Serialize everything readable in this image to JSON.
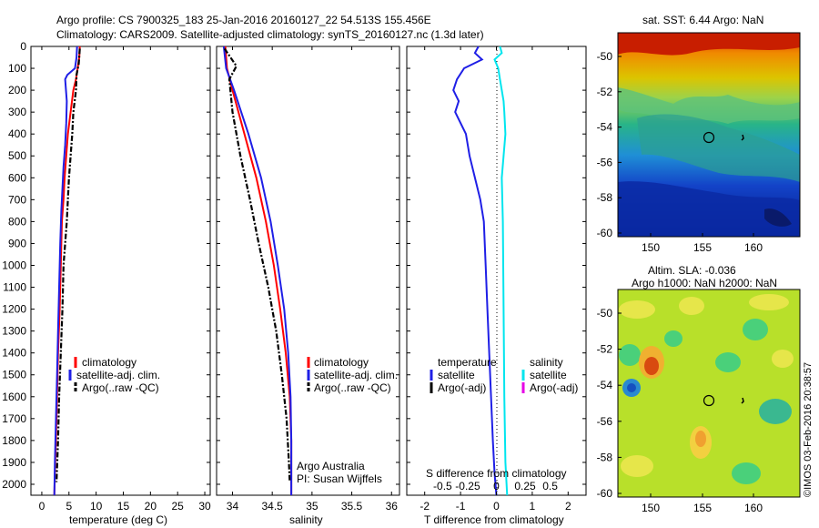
{
  "header": {
    "line1": "Argo profile: CS 7900325_183 25-Jan-2016 20160127_22 54.513S 155.456E",
    "line2": "Climatology: CARS2009. Satellite-adjusted climatology: synTS_20160127.nc (1.3d later)"
  },
  "credit": "©IMOS 03-Feb-2016 20:38:57",
  "colors": {
    "climatology": "#ff0000",
    "satellite": "#1f1fe6",
    "argo": "#000000",
    "salinity_satellite": "#00e5ee",
    "salinity_argo": "#e600e6"
  },
  "chart_data": [
    {
      "type": "line",
      "name": "temperature-profile",
      "xlabel": "temperature (deg C)",
      "ylabel": "",
      "xlim": [
        -2,
        31
      ],
      "ylim": [
        2050,
        0
      ],
      "xticks": [
        0,
        5,
        10,
        15,
        20,
        25,
        30
      ],
      "yticks": [
        0,
        100,
        200,
        300,
        400,
        500,
        600,
        700,
        800,
        900,
        1000,
        1100,
        1200,
        1300,
        1400,
        1500,
        1600,
        1700,
        1800,
        1900,
        2000
      ],
      "legend": [
        "climatology",
        "satellite-adj. clim.",
        "Argo(..raw -QC)"
      ],
      "legend_position": "lower-left",
      "series": [
        {
          "name": "climatology",
          "color": "#ff0000",
          "style": "solid",
          "x": [
            7.0,
            6.9,
            6.6,
            6.3,
            5.8,
            5.3,
            4.8,
            4.5,
            4.2,
            4.0,
            3.7,
            3.5,
            3.3,
            3.0,
            2.8,
            2.6,
            2.4,
            2.3
          ],
          "y": [
            0,
            50,
            100,
            150,
            200,
            300,
            400,
            500,
            600,
            700,
            800,
            1000,
            1200,
            1400,
            1600,
            1800,
            1950,
            2050
          ]
        },
        {
          "name": "satellite-adj. clim.",
          "color": "#1f1fe6",
          "style": "solid",
          "x": [
            6.5,
            6.4,
            6.1,
            4.7,
            4.3,
            4.6,
            4.5,
            4.3,
            4.0,
            3.8,
            3.6,
            3.4,
            3.2,
            3.0,
            2.8,
            2.6,
            2.4,
            2.3
          ],
          "y": [
            0,
            50,
            100,
            130,
            150,
            250,
            350,
            450,
            550,
            650,
            750,
            900,
            1100,
            1300,
            1500,
            1700,
            1900,
            2050
          ]
        },
        {
          "name": "Argo(..raw -QC)",
          "color": "#000000",
          "style": "dashdot",
          "x": [
            7.0,
            6.8,
            6.4,
            6.3,
            5.8,
            5.6,
            5.3,
            5.0,
            4.8,
            4.6,
            4.3,
            4.0,
            3.8,
            3.5,
            3.2,
            3.0,
            2.7
          ],
          "y": [
            10,
            80,
            130,
            200,
            300,
            400,
            500,
            600,
            700,
            800,
            900,
            1000,
            1200,
            1400,
            1600,
            1800,
            1990
          ]
        }
      ]
    },
    {
      "type": "line",
      "name": "salinity-profile",
      "xlabel": "salinity",
      "ylabel": "",
      "xlim": [
        33.8,
        36.1
      ],
      "ylim": [
        2050,
        0
      ],
      "xticks": [
        34,
        34.5,
        35,
        35.5,
        36
      ],
      "xtick_labels": [
        "34",
        "34.5",
        "35",
        "35.5",
        "36"
      ],
      "legend": [
        "climatology",
        "satellite-adj. clim.",
        "Argo(..raw -QC)"
      ],
      "legend_position": "lower-right",
      "annotations": [
        "Argo Australia",
        "PI: Susan Wijffels"
      ],
      "series": [
        {
          "name": "climatology",
          "color": "#ff0000",
          "style": "solid",
          "x": [
            33.91,
            33.93,
            34.0,
            34.15,
            34.3,
            34.42,
            34.52,
            34.6,
            34.67,
            34.72,
            34.74,
            34.74,
            34.74
          ],
          "y": [
            0,
            100,
            200,
            400,
            600,
            800,
            1000,
            1200,
            1400,
            1600,
            1800,
            1950,
            2050
          ]
        },
        {
          "name": "satellite-adj. clim.",
          "color": "#1f1fe6",
          "style": "solid",
          "x": [
            33.89,
            33.92,
            34.02,
            34.2,
            34.36,
            34.48,
            34.57,
            34.65,
            34.7,
            34.73,
            34.74,
            34.74,
            34.74
          ],
          "y": [
            0,
            100,
            200,
            400,
            600,
            800,
            1000,
            1200,
            1400,
            1600,
            1800,
            1950,
            2050
          ]
        },
        {
          "name": "Argo(..raw -QC)",
          "color": "#000000",
          "style": "dashdot",
          "x": [
            33.9,
            34.05,
            33.96,
            34.0,
            34.1,
            34.22,
            34.33,
            34.45,
            34.55,
            34.62,
            34.68,
            34.71,
            34.72
          ],
          "y": [
            10,
            90,
            150,
            300,
            500,
            700,
            900,
            1100,
            1300,
            1500,
            1700,
            1900,
            1990
          ]
        }
      ]
    },
    {
      "type": "line",
      "name": "difference-profile",
      "xlabel": "T difference from climatology",
      "xlabel_secondary": "S difference from climatology",
      "xlim": [
        -2.5,
        2.5
      ],
      "ylim": [
        2050,
        0
      ],
      "xticks": [
        -2,
        -1,
        0,
        1,
        2
      ],
      "xtick_labels_secondary": [
        "-0.5",
        "-0.25",
        "0",
        "0.25",
        "0.5"
      ],
      "legend": [
        "temperature",
        "satellite",
        "Argo(-adj)",
        "salinity",
        "satellite",
        "Argo(-adj)"
      ],
      "legend_position": "lower-center",
      "series": [
        {
          "name": "temperature satellite",
          "color": "#1f1fe6",
          "style": "solid",
          "x": [
            -0.5,
            -0.6,
            -0.4,
            -0.9,
            -1.1,
            -1.2,
            -1.05,
            -1.15,
            -0.85,
            -0.75,
            -0.6,
            -0.45,
            -0.35,
            -0.3,
            -0.25,
            -0.2,
            -0.15,
            -0.1,
            -0.05,
            0.0
          ],
          "y": [
            0,
            30,
            60,
            100,
            150,
            200,
            250,
            300,
            400,
            500,
            600,
            700,
            800,
            1000,
            1200,
            1400,
            1600,
            1800,
            1950,
            2050
          ]
        },
        {
          "name": "salinity satellite",
          "color": "#00e5ee",
          "style": "solid",
          "x": [
            0.1,
            0.15,
            -0.05,
            0.05,
            0.1,
            0.15,
            0.2,
            0.22,
            0.25,
            0.2,
            0.15,
            0.18,
            0.2,
            0.22,
            0.25,
            0.3
          ],
          "y": [
            0,
            30,
            60,
            100,
            150,
            200,
            250,
            300,
            400,
            500,
            600,
            800,
            1200,
            1600,
            1900,
            2050
          ]
        }
      ]
    }
  ],
  "maps": [
    {
      "name": "sst-map",
      "title": "sat. SST: 6.44  Argo: NaN",
      "xticks": [
        "150",
        "155",
        "160"
      ],
      "yticks": [
        "-50",
        "-52",
        "-54",
        "-56",
        "-58",
        "-60"
      ]
    },
    {
      "name": "sla-map",
      "title_line1": "Altim. SLA: -0.036",
      "title_line2": "Argo h1000: NaN h2000: NaN",
      "xticks": [
        "150",
        "155",
        "160"
      ],
      "yticks": [
        "-50",
        "-52",
        "-54",
        "-56",
        "-58",
        "-60"
      ]
    }
  ]
}
